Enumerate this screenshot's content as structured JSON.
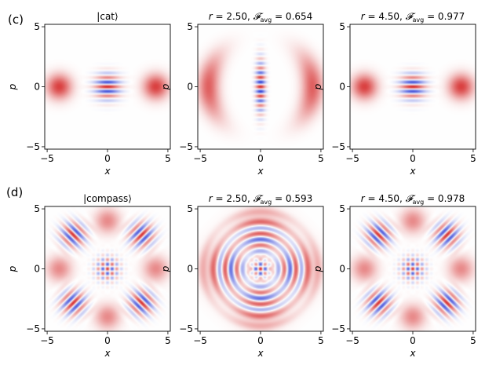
{
  "row_labels": [
    "(c)",
    "(d)"
  ],
  "chart_data": [
    {
      "type": "heatmap",
      "title": "|cat⟩",
      "xlabel": "x",
      "ylabel": "p",
      "xlim": [
        -5.2,
        5.2
      ],
      "ylim": [
        -5.2,
        5.2
      ],
      "xticks": [
        -5,
        0,
        5
      ],
      "yticks": [
        -5,
        0,
        5
      ],
      "state": "cat",
      "variant": "ideal",
      "colormap": "bwr",
      "colors": {
        "positive": "#d62c2c",
        "negative": "#2f3fd6"
      }
    },
    {
      "type": "heatmap",
      "title": "r = 2.50, 𝓕avg = 0.654",
      "title_parts": {
        "r": "2.50",
        "F": "0.654"
      },
      "xlabel": "x",
      "ylabel": "p",
      "xlim": [
        -5.2,
        5.2
      ],
      "ylim": [
        -5.2,
        5.2
      ],
      "xticks": [
        -5,
        0,
        5
      ],
      "yticks": [
        -5,
        0,
        5
      ],
      "state": "cat",
      "variant": "distorted"
    },
    {
      "type": "heatmap",
      "title": "r = 4.50, 𝓕avg = 0.977",
      "title_parts": {
        "r": "4.50",
        "F": "0.977"
      },
      "xlabel": "x",
      "ylabel": "p",
      "xlim": [
        -5.2,
        5.2
      ],
      "ylim": [
        -5.2,
        5.2
      ],
      "xticks": [
        -5,
        0,
        5
      ],
      "yticks": [
        -5,
        0,
        5
      ],
      "state": "cat",
      "variant": "ideal"
    },
    {
      "type": "heatmap",
      "title": "|compass⟩",
      "xlabel": "x",
      "ylabel": "p",
      "xlim": [
        -5.2,
        5.2
      ],
      "ylim": [
        -5.2,
        5.2
      ],
      "xticks": [
        -5,
        0,
        5
      ],
      "yticks": [
        -5,
        0,
        5
      ],
      "state": "compass",
      "variant": "ideal"
    },
    {
      "type": "heatmap",
      "title": "r = 2.50, 𝓕avg = 0.593",
      "title_parts": {
        "r": "2.50",
        "F": "0.593"
      },
      "xlabel": "x",
      "ylabel": "p",
      "xlim": [
        -5.2,
        5.2
      ],
      "ylim": [
        -5.2,
        5.2
      ],
      "xticks": [
        -5,
        0,
        5
      ],
      "yticks": [
        -5,
        0,
        5
      ],
      "state": "compass",
      "variant": "distorted"
    },
    {
      "type": "heatmap",
      "title": "r = 4.50, 𝓕avg = 0.978",
      "title_parts": {
        "r": "4.50",
        "F": "0.978"
      },
      "xlabel": "x",
      "ylabel": "p",
      "xlim": [
        -5.2,
        5.2
      ],
      "ylim": [
        -5.2,
        5.2
      ],
      "xticks": [
        -5,
        0,
        5
      ],
      "yticks": [
        -5,
        0,
        5
      ],
      "state": "compass",
      "variant": "ideal"
    }
  ]
}
